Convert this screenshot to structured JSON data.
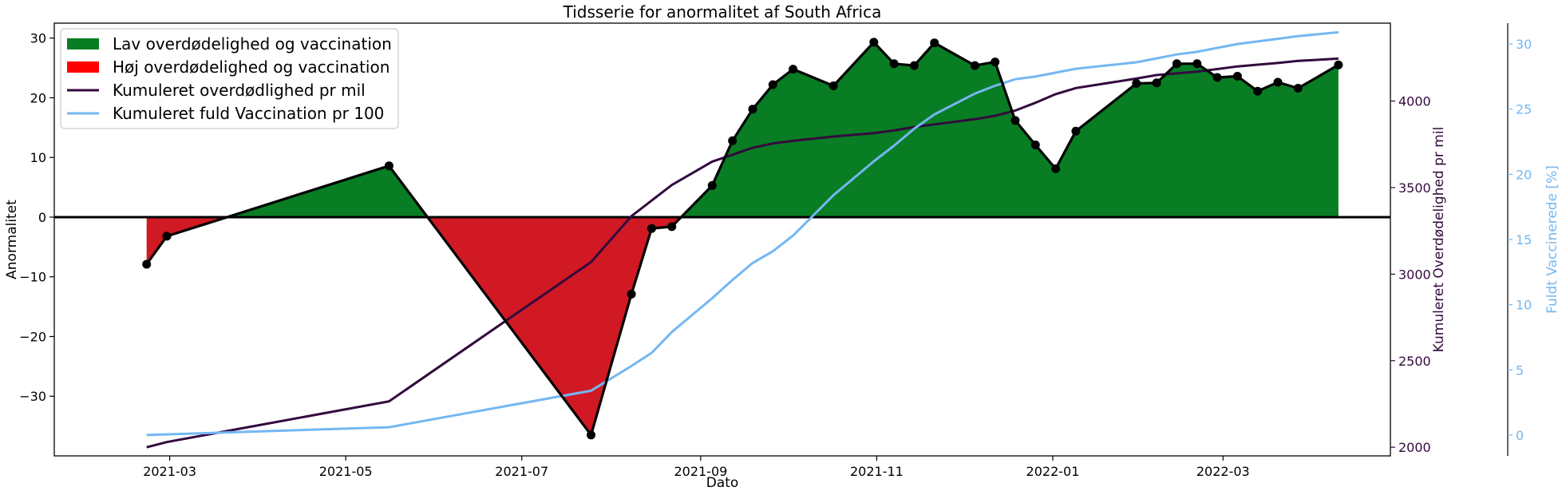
{
  "chart_data": {
    "type": "area",
    "title": "Tidsserie for anormalitet af South Africa",
    "xlabel": "Dato",
    "ylabel": "Anormalitet",
    "y2label": "Kumuleret Overdødelighed pr mil",
    "y3label": "Fuldt Vaccinerede [%]",
    "xlim": [
      "2021-01-20",
      "2022-04-28"
    ],
    "ylim": [
      -40,
      32.5
    ],
    "y2lim": [
      1950,
      4450
    ],
    "y3lim": [
      -1.6,
      31.6
    ],
    "x_ticks": [
      "2021-03",
      "2021-05",
      "2021-07",
      "2021-09",
      "2021-11",
      "2022-01",
      "2022-03"
    ],
    "y_ticks": [
      30,
      20,
      10,
      0,
      -10,
      -20,
      -30
    ],
    "y2_ticks": [
      4000,
      3500,
      3000,
      2500,
      2000
    ],
    "y3_ticks": [
      30,
      25,
      20,
      15,
      10,
      5,
      0
    ],
    "grid": false,
    "legend_position": "top-left",
    "colors": {
      "positive_fill": "#087d23",
      "negative_fill": "#d01923",
      "anomaly_line": "#000000",
      "mortality_line": "#330a3e",
      "vaccination_line": "#74b7f2",
      "zero_line": "#000000"
    },
    "legend": [
      {
        "label": "Lav overdødelighed og vaccination",
        "kind": "patch",
        "color": "#087d23"
      },
      {
        "label": "Høj overdødelighed og vaccination",
        "kind": "patch",
        "color": "#ff0000"
      },
      {
        "label": "Kumuleret overdødlighed pr mil",
        "kind": "line",
        "color": "#330a3e"
      },
      {
        "label": "Kumuleret fuld Vaccination pr 100",
        "kind": "line",
        "color": "#74b7f2"
      }
    ],
    "anomaly_series": {
      "name": "Anormalitet",
      "x": [
        "2021-02-21",
        "2021-02-28",
        "2021-05-16",
        "2021-07-25",
        "2021-08-08",
        "2021-08-15",
        "2021-08-22",
        "2021-09-05",
        "2021-09-12",
        "2021-09-19",
        "2021-09-26",
        "2021-10-03",
        "2021-10-17",
        "2021-10-31",
        "2021-11-07",
        "2021-11-14",
        "2021-11-21",
        "2021-12-05",
        "2021-12-12",
        "2021-12-19",
        "2021-12-26",
        "2022-01-02",
        "2022-01-09",
        "2022-01-30",
        "2022-02-06",
        "2022-02-13",
        "2022-02-20",
        "2022-02-27",
        "2022-03-06",
        "2022-03-13",
        "2022-03-20",
        "2022-03-27",
        "2022-04-10"
      ],
      "values": [
        -7.9,
        -3.2,
        8.6,
        -36.5,
        -12.9,
        -1.9,
        -1.6,
        5.3,
        12.8,
        18.1,
        22.2,
        24.8,
        22.0,
        29.3,
        25.7,
        25.4,
        29.2,
        25.4,
        26.0,
        16.2,
        12.1,
        8.1,
        14.4,
        22.4,
        22.5,
        25.7,
        25.7,
        23.4,
        23.6,
        21.1,
        22.6,
        21.6,
        25.5
      ]
    },
    "mortality_series": {
      "name": "Kumuleret overdødlighed pr mil",
      "x": [
        "2021-02-21",
        "2021-02-28",
        "2021-05-16",
        "2021-07-25",
        "2021-08-08",
        "2021-08-15",
        "2021-08-22",
        "2021-09-05",
        "2021-09-12",
        "2021-09-19",
        "2021-09-26",
        "2021-10-03",
        "2021-10-17",
        "2021-10-31",
        "2021-11-07",
        "2021-11-14",
        "2021-11-21",
        "2021-12-05",
        "2021-12-12",
        "2021-12-19",
        "2021-12-26",
        "2022-01-02",
        "2022-01-09",
        "2022-01-30",
        "2022-02-06",
        "2022-02-13",
        "2022-02-20",
        "2022-02-27",
        "2022-03-06",
        "2022-03-13",
        "2022-03-20",
        "2022-03-27",
        "2022-04-10"
      ],
      "values": [
        2000,
        2030,
        2265,
        3070,
        3335,
        3425,
        3515,
        3650,
        3690,
        3730,
        3755,
        3770,
        3795,
        3815,
        3830,
        3850,
        3865,
        3895,
        3915,
        3945,
        3990,
        4040,
        4075,
        4130,
        4150,
        4160,
        4170,
        4185,
        4200,
        4210,
        4220,
        4232,
        4245
      ]
    },
    "vaccination_series": {
      "name": "Kumuleret fuld Vaccination pr 100",
      "x": [
        "2021-02-21",
        "2021-05-16",
        "2021-07-25",
        "2021-08-08",
        "2021-08-15",
        "2021-08-22",
        "2021-09-05",
        "2021-09-12",
        "2021-09-19",
        "2021-09-26",
        "2021-10-03",
        "2021-10-17",
        "2021-10-31",
        "2021-11-07",
        "2021-11-14",
        "2021-11-21",
        "2021-12-05",
        "2021-12-12",
        "2021-12-19",
        "2021-12-26",
        "2022-01-02",
        "2022-01-09",
        "2022-01-30",
        "2022-02-06",
        "2022-02-13",
        "2022-02-20",
        "2022-02-27",
        "2022-03-06",
        "2022-03-13",
        "2022-03-20",
        "2022-03-27",
        "2022-04-10"
      ],
      "values": [
        0.0,
        0.6,
        3.4,
        5.3,
        6.3,
        7.9,
        10.5,
        11.9,
        13.2,
        14.1,
        15.3,
        18.4,
        21.0,
        22.2,
        23.5,
        24.6,
        26.2,
        26.8,
        27.3,
        27.5,
        27.8,
        28.1,
        28.6,
        28.9,
        29.2,
        29.4,
        29.7,
        30.0,
        30.2,
        30.4,
        30.6,
        30.9
      ]
    }
  }
}
